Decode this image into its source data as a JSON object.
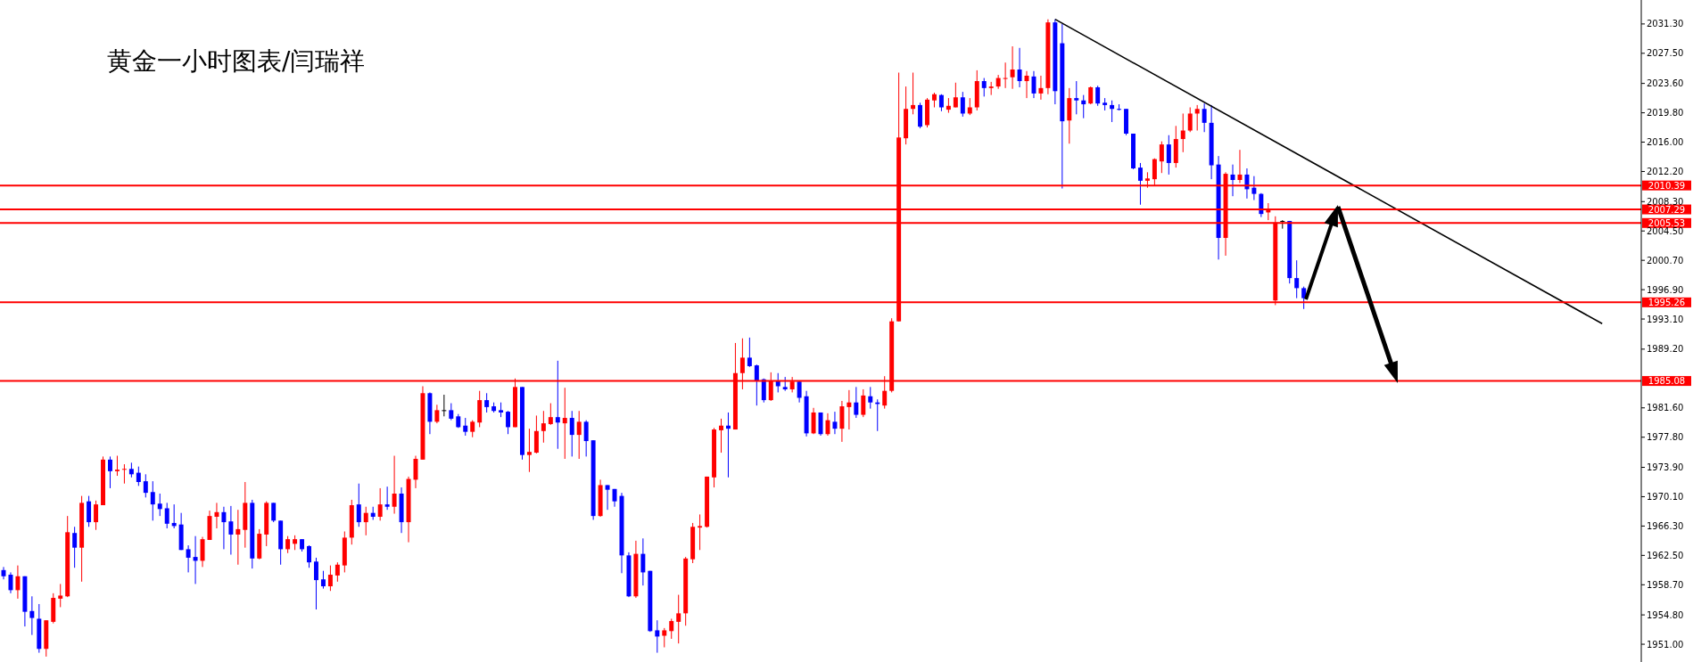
{
  "chart_data": {
    "type": "candlestick",
    "title": "黄金一小时图表/闫瑞祥",
    "categories": [
      null,
      null,
      null,
      null,
      null,
      null,
      null,
      null,
      null,
      null,
      null,
      null,
      null,
      null,
      null,
      null,
      null,
      null,
      null,
      null,
      null,
      null,
      null,
      null,
      null,
      null,
      null,
      null,
      null,
      null,
      null,
      null,
      null,
      null,
      null,
      null,
      null,
      null,
      null,
      null,
      null,
      null,
      null,
      null,
      null,
      null,
      null,
      null,
      null,
      null,
      null,
      null,
      null,
      null,
      null,
      null,
      null,
      null,
      null,
      null,
      null,
      null,
      null,
      null,
      null,
      null,
      null,
      null,
      null,
      null,
      null,
      null,
      null,
      null,
      null,
      null,
      null,
      null,
      null,
      null,
      null,
      null,
      null,
      null,
      null,
      null,
      null,
      null,
      null,
      null,
      null,
      null,
      null,
      null,
      null,
      null,
      null,
      null,
      null,
      null,
      null,
      null,
      null,
      null,
      null,
      null,
      null,
      null,
      null,
      null,
      null,
      null,
      null,
      null,
      null,
      null,
      null,
      null,
      null,
      null,
      null,
      null,
      null,
      null,
      null,
      null,
      null,
      null,
      null,
      null,
      null,
      null,
      null,
      null,
      null,
      null,
      null,
      null,
      null,
      null,
      null,
      null,
      null,
      null,
      null,
      null,
      null,
      null,
      null,
      null,
      null,
      null,
      null,
      null,
      null,
      null,
      null,
      null,
      null,
      null,
      null,
      null,
      null,
      null,
      null,
      null,
      null,
      null,
      null,
      null,
      null,
      null,
      null,
      null,
      null,
      null,
      null,
      null,
      null,
      null,
      null,
      null,
      null,
      null,
      null,
      null,
      null,
      null,
      null,
      null,
      null,
      null,
      null,
      null,
      null,
      null,
      null,
      null,
      null,
      null,
      null,
      null,
      null,
      null,
      null,
      null,
      null,
      null,
      null,
      null,
      null,
      null,
      null,
      null,
      null,
      null,
      null,
      null,
      null,
      null,
      null,
      null,
      null,
      null,
      null,
      null,
      null,
      null,
      null,
      null,
      null
    ],
    "ohlc": [
      [
        1960.6,
        1961.0,
        1959.4,
        1959.8
      ],
      [
        1960.0,
        1960.3,
        1957.6,
        1958.0
      ],
      [
        1958.0,
        1961.2,
        1956.9,
        1959.8
      ],
      [
        1959.8,
        1959.8,
        1953.3,
        1955.2
      ],
      [
        1955.3,
        1957.2,
        1952.2,
        1954.4
      ],
      [
        1954.3,
        1956.2,
        1949.9,
        1950.4
      ],
      [
        1950.4,
        1954.1,
        1949.4,
        1954.1
      ],
      [
        1953.9,
        1957.6,
        1953.7,
        1957.0
      ],
      [
        1956.9,
        1958.8,
        1955.8,
        1957.3
      ],
      [
        1957.2,
        1967.6,
        1957.1,
        1965.5
      ],
      [
        1965.4,
        1966.2,
        1960.9,
        1963.5
      ],
      [
        1963.5,
        1970.2,
        1959.1,
        1969.3
      ],
      [
        1969.5,
        1970.2,
        1966.2,
        1966.8
      ],
      [
        1966.8,
        1969.6,
        1965.8,
        1969.1
      ],
      [
        1969.0,
        1975.3,
        1969.0,
        1974.9
      ],
      [
        1974.9,
        1975.3,
        1971.2,
        1973.4
      ],
      [
        1973.4,
        1975.4,
        1972.8,
        1973.6
      ],
      [
        1973.6,
        1974.3,
        1971.8,
        1973.7
      ],
      [
        1973.7,
        1974.5,
        1972.6,
        1973.0
      ],
      [
        1973.2,
        1974.0,
        1971.5,
        1972.0
      ],
      [
        1972.1,
        1973.0,
        1970.0,
        1970.6
      ],
      [
        1970.7,
        1972.1,
        1967.0,
        1969.1
      ],
      [
        1969.2,
        1970.5,
        1967.6,
        1968.5
      ],
      [
        1968.6,
        1969.3,
        1966.0,
        1966.6
      ],
      [
        1966.7,
        1969.1,
        1966.0,
        1966.3
      ],
      [
        1966.5,
        1968.0,
        1963.2,
        1963.2
      ],
      [
        1963.3,
        1963.8,
        1960.3,
        1962.2
      ],
      [
        1962.3,
        1965.0,
        1958.8,
        1961.8
      ],
      [
        1961.8,
        1964.9,
        1961.0,
        1964.6
      ],
      [
        1964.5,
        1968.3,
        1964.5,
        1967.6
      ],
      [
        1967.5,
        1969.3,
        1966.0,
        1968.1
      ],
      [
        1968.1,
        1968.8,
        1963.3,
        1966.8
      ],
      [
        1966.9,
        1968.9,
        1962.6,
        1965.2
      ],
      [
        1965.2,
        1968.4,
        1961.3,
        1965.9
      ],
      [
        1965.8,
        1972.0,
        1963.5,
        1969.3
      ],
      [
        1969.3,
        1969.7,
        1960.8,
        1962.1
      ],
      [
        1962.1,
        1965.9,
        1962.0,
        1965.3
      ],
      [
        1965.2,
        1969.5,
        1963.7,
        1969.3
      ],
      [
        1969.3,
        1969.3,
        1966.8,
        1967.0
      ],
      [
        1967.0,
        1967.0,
        1961.3,
        1963.3
      ],
      [
        1963.3,
        1965.0,
        1962.8,
        1964.6
      ],
      [
        1964.0,
        1965.1,
        1963.2,
        1964.6
      ],
      [
        1964.6,
        1964.6,
        1963.0,
        1963.3
      ],
      [
        1963.7,
        1963.8,
        1960.9,
        1961.6
      ],
      [
        1961.7,
        1962.2,
        1955.5,
        1959.3
      ],
      [
        1959.4,
        1960.5,
        1958.2,
        1958.5
      ],
      [
        1958.5,
        1961.2,
        1957.9,
        1960.0
      ],
      [
        1959.9,
        1961.6,
        1959.1,
        1961.3
      ],
      [
        1961.2,
        1965.6,
        1960.3,
        1964.8
      ],
      [
        1964.8,
        1969.7,
        1963.9,
        1969.0
      ],
      [
        1969.1,
        1971.8,
        1966.2,
        1966.8
      ],
      [
        1966.8,
        1968.8,
        1965.1,
        1968.0
      ],
      [
        1968.0,
        1968.8,
        1967.1,
        1967.5
      ],
      [
        1967.5,
        1971.2,
        1967.0,
        1969.1
      ],
      [
        1969.1,
        1971.4,
        1968.4,
        1968.8
      ],
      [
        1968.8,
        1975.4,
        1967.9,
        1970.5
      ],
      [
        1970.5,
        1971.3,
        1965.4,
        1966.8
      ],
      [
        1966.8,
        1972.7,
        1964.2,
        1972.4
      ],
      [
        1972.3,
        1975.4,
        1971.2,
        1975.0
      ],
      [
        1974.9,
        1984.4,
        1974.9,
        1983.5
      ],
      [
        1983.5,
        1983.6,
        1978.2,
        1979.8
      ],
      [
        1979.8,
        1982.0,
        1979.6,
        1981.3
      ],
      [
        1981.3,
        1983.3,
        1980.5,
        1981.3
      ],
      [
        1981.3,
        1982.2,
        1980.0,
        1980.2
      ],
      [
        1980.5,
        1980.8,
        1979.0,
        1979.1
      ],
      [
        1979.3,
        1980.3,
        1978.0,
        1978.5
      ],
      [
        1978.5,
        1980.0,
        1977.8,
        1979.8
      ],
      [
        1979.7,
        1983.8,
        1979.1,
        1982.6
      ],
      [
        1982.6,
        1983.5,
        1981.0,
        1981.7
      ],
      [
        1981.8,
        1982.3,
        1981.0,
        1981.2
      ],
      [
        1981.3,
        1982.3,
        1980.4,
        1981.0
      ],
      [
        1981.1,
        1981.2,
        1978.2,
        1979.1
      ],
      [
        1979.1,
        1985.4,
        1979.1,
        1984.3
      ],
      [
        1984.3,
        1984.3,
        1974.9,
        1975.5
      ],
      [
        1975.5,
        1978.9,
        1973.3,
        1975.9
      ],
      [
        1975.8,
        1980.6,
        1975.7,
        1978.6
      ],
      [
        1978.6,
        1981.2,
        1977.1,
        1979.6
      ],
      [
        1979.5,
        1982.2,
        1979.4,
        1980.4
      ],
      [
        1980.4,
        1987.7,
        1976.3,
        1979.7
      ],
      [
        1979.6,
        1984.2,
        1975.0,
        1980.3
      ],
      [
        1980.3,
        1981.2,
        1975.3,
        1978.1
      ],
      [
        1978.1,
        1981.2,
        1975.0,
        1979.8
      ],
      [
        1979.8,
        1980.0,
        1975.3,
        1977.3
      ],
      [
        1977.4,
        1977.4,
        1967.1,
        1967.6
      ],
      [
        1967.6,
        1972.3,
        1967.5,
        1971.6
      ],
      [
        1971.6,
        1971.6,
        1968.4,
        1971.0
      ],
      [
        1971.1,
        1971.1,
        1968.8,
        1969.5
      ],
      [
        1970.2,
        1970.6,
        1960.2,
        1962.5
      ],
      [
        1962.5,
        1962.9,
        1957.1,
        1957.2
      ],
      [
        1957.2,
        1964.4,
        1957.0,
        1962.7
      ],
      [
        1962.7,
        1964.7,
        1958.6,
        1960.3
      ],
      [
        1960.5,
        1960.5,
        1952.6,
        1952.7
      ],
      [
        1952.8,
        1954.1,
        1949.9,
        1952.0
      ],
      [
        1952.1,
        1953.1,
        1950.6,
        1952.8
      ],
      [
        1952.7,
        1954.3,
        1951.7,
        1954.0
      ],
      [
        1953.9,
        1957.4,
        1951.1,
        1955.0
      ],
      [
        1955.0,
        1962.3,
        1953.4,
        1962.1
      ],
      [
        1962.0,
        1966.7,
        1961.5,
        1966.2
      ],
      [
        1966.1,
        1967.8,
        1963.2,
        1966.3
      ],
      [
        1966.2,
        1972.7,
        1966.1,
        1972.7
      ],
      [
        1972.6,
        1979.0,
        1971.3,
        1978.8
      ],
      [
        1978.7,
        1980.2,
        1975.8,
        1979.3
      ],
      [
        1979.3,
        1981.0,
        1972.6,
        1978.9
      ],
      [
        1978.8,
        1990.0,
        1978.8,
        1986.1
      ],
      [
        1986.1,
        1990.6,
        1984.0,
        1988.1
      ],
      [
        1988.1,
        1990.7,
        1986.9,
        1987.0
      ],
      [
        1987.1,
        1987.2,
        1981.9,
        1985.1
      ],
      [
        1985.3,
        1985.4,
        1982.3,
        1982.6
      ],
      [
        1982.6,
        1986.2,
        1982.5,
        1985.1
      ],
      [
        1985.1,
        1986.1,
        1983.6,
        1984.4
      ],
      [
        1984.3,
        1985.6,
        1983.8,
        1984.0
      ],
      [
        1984.0,
        1985.6,
        1983.6,
        1985.0
      ],
      [
        1985.0,
        1985.1,
        1982.3,
        1982.9
      ],
      [
        1983.1,
        1983.8,
        1977.9,
        1978.3
      ],
      [
        1978.3,
        1981.6,
        1978.2,
        1981.0
      ],
      [
        1981.0,
        1981.0,
        1978.0,
        1978.2
      ],
      [
        1978.2,
        1980.9,
        1978.0,
        1980.0
      ],
      [
        1979.8,
        1981.1,
        1978.2,
        1978.9
      ],
      [
        1978.9,
        1982.5,
        1977.2,
        1981.8
      ],
      [
        1981.7,
        1983.9,
        1978.8,
        1982.3
      ],
      [
        1982.3,
        1984.3,
        1980.3,
        1980.7
      ],
      [
        1980.7,
        1984.0,
        1980.4,
        1983.2
      ],
      [
        1983.1,
        1984.3,
        1981.5,
        1982.3
      ],
      [
        1982.3,
        1982.7,
        1978.6,
        1982.1
      ],
      [
        1981.9,
        1985.7,
        1981.5,
        1983.8
      ],
      [
        1983.8,
        1993.2,
        1983.6,
        1992.8
      ],
      [
        1992.8,
        2025.0,
        1992.8,
        2016.6
      ],
      [
        2016.5,
        2023.2,
        2015.7,
        2020.3
      ],
      [
        2020.3,
        2025.0,
        2019.6,
        2020.8
      ],
      [
        2020.8,
        2021.1,
        2017.8,
        2018.0
      ],
      [
        2018.2,
        2021.7,
        2017.9,
        2021.5
      ],
      [
        2021.4,
        2022.4,
        2020.5,
        2022.2
      ],
      [
        2022.1,
        2022.2,
        2020.0,
        2020.5
      ],
      [
        2020.2,
        2021.7,
        2019.8,
        2020.7
      ],
      [
        2020.5,
        2023.7,
        2020.5,
        2021.8
      ],
      [
        2021.8,
        2022.5,
        2019.3,
        2019.7
      ],
      [
        2019.7,
        2021.7,
        2019.5,
        2020.5
      ],
      [
        2020.5,
        2025.3,
        2020.1,
        2023.9
      ],
      [
        2023.9,
        2024.3,
        2021.9,
        2023.0
      ],
      [
        2023.0,
        2023.8,
        2022.1,
        2023.2
      ],
      [
        2023.2,
        2024.7,
        2022.9,
        2024.3
      ],
      [
        2024.2,
        2026.3,
        2023.0,
        2024.3
      ],
      [
        2024.4,
        2028.4,
        2022.9,
        2025.4
      ],
      [
        2025.4,
        2028.2,
        2023.1,
        2023.9
      ],
      [
        2023.9,
        2025.2,
        2021.7,
        2024.6
      ],
      [
        2024.5,
        2025.2,
        2021.7,
        2022.3
      ],
      [
        2022.3,
        2024.6,
        2021.5,
        2023.0
      ],
      [
        2023.0,
        2031.9,
        2022.2,
        2031.5
      ],
      [
        2031.5,
        2031.9,
        2020.9,
        2022.6
      ],
      [
        2028.8,
        2031.3,
        2010.0,
        2018.7
      ],
      [
        2018.8,
        2023.0,
        2015.8,
        2021.7
      ],
      [
        2021.7,
        2023.9,
        2019.6,
        2021.4
      ],
      [
        2021.4,
        2022.1,
        2019.1,
        2020.9
      ],
      [
        2021.0,
        2023.2,
        2020.9,
        2023.1
      ],
      [
        2023.1,
        2023.3,
        2020.7,
        2021.0
      ],
      [
        2021.1,
        2021.7,
        2020.1,
        2020.8
      ],
      [
        2020.8,
        2021.4,
        2018.6,
        2020.3
      ],
      [
        2020.3,
        2020.9,
        2020.1,
        2020.2
      ],
      [
        2020.3,
        2020.3,
        2016.9,
        2017.1
      ],
      [
        2017.1,
        2017.1,
        2012.5,
        2012.6
      ],
      [
        2012.7,
        2013.3,
        2007.9,
        2011.0
      ],
      [
        2011.0,
        2012.1,
        2010.1,
        2011.3
      ],
      [
        2011.2,
        2013.9,
        2010.4,
        2013.8
      ],
      [
        2013.5,
        2016.1,
        2012.0,
        2015.7
      ],
      [
        2015.7,
        2016.9,
        2011.8,
        2013.3
      ],
      [
        2013.3,
        2018.1,
        2012.7,
        2016.4
      ],
      [
        2016.4,
        2019.7,
        2014.7,
        2017.5
      ],
      [
        2017.5,
        2020.5,
        2017.3,
        2019.7
      ],
      [
        2019.7,
        2020.8,
        2017.5,
        2020.3
      ],
      [
        2020.3,
        2021.0,
        2017.3,
        2018.5
      ],
      [
        2018.5,
        2020.8,
        2011.2,
        2013.0
      ],
      [
        2013.1,
        2014.2,
        2000.8,
        2003.6
      ],
      [
        2003.6,
        2012.1,
        2001.3,
        2011.9
      ],
      [
        2011.8,
        2013.1,
        2009.0,
        2011.1
      ],
      [
        2011.1,
        2015.0,
        2010.7,
        2011.8
      ],
      [
        2011.8,
        2012.6,
        2008.7,
        2009.9
      ],
      [
        2010.1,
        2011.6,
        2008.5,
        2009.3
      ],
      [
        2009.3,
        2009.4,
        2006.3,
        2006.7
      ],
      [
        2006.9,
        2008.1,
        2005.9,
        2007.3
      ],
      [
        1995.5,
        2006.4,
        1994.9,
        2005.6
      ],
      [
        2005.8,
        2005.9,
        2004.8,
        2005.8
      ],
      [
        2005.8,
        2005.8,
        1997.7,
        1998.4
      ],
      [
        1998.4,
        2000.7,
        1995.8,
        1997.1
      ],
      [
        1997.1,
        1997.3,
        1994.4,
        1995.8
      ],
      null,
      null,
      null,
      null,
      null,
      null,
      null,
      null,
      null,
      null,
      null,
      null,
      null,
      null,
      null,
      null,
      null,
      null,
      null,
      null,
      null,
      null,
      null,
      null,
      null,
      null,
      null,
      null,
      null,
      null,
      null,
      null,
      null,
      null,
      null,
      null,
      null,
      null,
      null,
      null,
      null,
      null,
      null,
      null,
      null,
      null,
      null
    ],
    "colors": [
      "#0000ff",
      "#0000ff",
      "#ff0000",
      "#0000ff",
      "#0000ff",
      "#0000ff",
      "#ff0000",
      "#ff0000",
      "#ff0000",
      "#ff0000",
      "#0000ff",
      "#ff0000",
      "#0000ff",
      "#ff0000",
      "#ff0000",
      "#0000ff",
      "#ff0000",
      "#ff0000",
      "#0000ff",
      "#0000ff",
      "#0000ff",
      "#0000ff",
      "#0000ff",
      "#0000ff",
      "#0000ff",
      "#0000ff",
      "#0000ff",
      "#0000ff",
      "#ff0000",
      "#ff0000",
      "#ff0000",
      "#0000ff",
      "#0000ff",
      "#ff0000",
      "#ff0000",
      "#0000ff",
      "#ff0000",
      "#ff0000",
      "#0000ff",
      "#0000ff",
      "#ff0000",
      "#ff0000",
      "#0000ff",
      "#0000ff",
      "#0000ff",
      "#0000ff",
      "#ff0000",
      "#ff0000",
      "#ff0000",
      "#ff0000",
      "#0000ff",
      "#ff0000",
      "#0000ff",
      "#ff0000",
      "#0000ff",
      "#ff0000",
      "#0000ff",
      "#ff0000",
      "#ff0000",
      "#ff0000",
      "#0000ff",
      "#ff0000",
      "#000000",
      "#0000ff",
      "#0000ff",
      "#0000ff",
      "#ff0000",
      "#ff0000",
      "#0000ff",
      "#0000ff",
      "#0000ff",
      "#0000ff",
      "#ff0000",
      "#0000ff",
      "#ff0000",
      "#ff0000",
      "#ff0000",
      "#ff0000",
      "#0000ff",
      "#ff0000",
      "#0000ff",
      "#ff0000",
      "#0000ff",
      "#0000ff",
      "#ff0000",
      "#0000ff",
      "#0000ff",
      "#0000ff",
      "#0000ff",
      "#ff0000",
      "#0000ff",
      "#0000ff",
      "#0000ff",
      "#ff0000",
      "#ff0000",
      "#ff0000",
      "#ff0000",
      "#ff0000",
      "#ff0000",
      "#ff0000",
      "#ff0000",
      "#ff0000",
      "#0000ff",
      "#ff0000",
      "#ff0000",
      "#0000ff",
      "#0000ff",
      "#0000ff",
      "#ff0000",
      "#0000ff",
      "#0000ff",
      "#ff0000",
      "#0000ff",
      "#0000ff",
      "#ff0000",
      "#0000ff",
      "#ff0000",
      "#0000ff",
      "#ff0000",
      "#ff0000",
      "#0000ff",
      "#ff0000",
      "#0000ff",
      "#0000ff",
      "#ff0000",
      "#ff0000",
      "#ff0000",
      "#ff0000",
      "#ff0000",
      "#0000ff",
      "#ff0000",
      "#ff0000",
      "#0000ff",
      "#ff0000",
      "#ff0000",
      "#0000ff",
      "#ff0000",
      "#ff0000",
      "#0000ff",
      "#ff0000",
      "#ff0000",
      "#ff0000",
      "#ff0000",
      "#0000ff",
      "#ff0000",
      "#0000ff",
      "#ff0000",
      "#ff0000",
      "#0000ff",
      "#0000ff",
      "#ff0000",
      "#0000ff",
      "#0000ff",
      "#ff0000",
      "#0000ff",
      "#0000ff",
      "#0000ff",
      "#0000ff",
      "#0000ff",
      "#0000ff",
      "#0000ff",
      "#ff0000",
      "#ff0000",
      "#ff0000",
      "#0000ff",
      "#ff0000",
      "#ff0000",
      "#ff0000",
      "#ff0000",
      "#0000ff",
      "#0000ff",
      "#0000ff",
      "#ff0000",
      "#0000ff",
      "#ff0000",
      "#0000ff",
      "#0000ff",
      "#0000ff",
      "#ff0000",
      "#ff0000",
      "#000000",
      "#0000ff",
      "#0000ff",
      "#0000ff",
      null,
      null,
      null,
      null,
      null,
      null,
      null,
      null,
      null,
      null,
      null,
      null,
      null,
      null,
      null,
      null,
      null,
      null,
      null,
      null,
      null,
      null,
      null,
      null,
      null,
      null,
      null,
      null,
      null,
      null,
      null,
      null,
      null,
      null,
      null,
      null,
      null,
      null,
      null,
      null,
      null,
      null,
      null,
      null,
      null,
      null,
      null
    ],
    "series": [
      {
        "type": "line",
        "color": "#000000",
        "values": [
          null,
          null,
          null,
          null,
          null,
          null,
          null,
          null,
          null,
          null,
          null,
          null,
          null,
          null,
          null,
          null,
          null,
          null,
          null,
          null,
          null,
          null,
          null,
          null,
          null,
          null,
          null,
          null,
          null,
          null,
          null,
          null,
          null,
          null,
          null,
          null,
          null,
          null,
          null,
          null,
          null,
          null,
          null,
          null,
          null,
          null,
          null,
          null,
          null,
          null,
          null,
          null,
          null,
          null,
          null,
          null,
          null,
          null,
          null,
          null,
          null,
          null,
          null,
          null,
          null,
          null,
          null,
          null,
          null,
          null,
          null,
          null,
          null,
          null,
          null,
          null,
          null,
          null,
          null,
          null,
          null,
          null,
          null,
          null,
          null,
          null,
          null,
          null,
          null,
          null,
          null,
          null,
          null,
          null,
          null,
          null,
          null,
          null,
          null,
          null,
          null,
          null,
          null,
          null,
          null,
          null,
          null,
          null,
          null,
          null,
          null,
          null,
          null,
          null,
          null,
          null,
          null,
          null,
          null,
          null,
          null,
          null,
          null,
          null,
          null,
          null,
          null,
          null,
          null,
          null,
          null,
          null,
          null,
          null,
          null,
          null,
          null,
          null,
          null,
          null,
          null,
          null,
          null,
          null,
          null,
          null,
          null,
          null,
          2031.9,
          null,
          null,
          null,
          null,
          null,
          null,
          null,
          null,
          null,
          null,
          null,
          null,
          null,
          null,
          null,
          null,
          null,
          null,
          null,
          null,
          null,
          null,
          null,
          null,
          null,
          null,
          null,
          null,
          null,
          null,
          null,
          null,
          null,
          null,
          null,
          null,
          null,
          null,
          null,
          null,
          null,
          null,
          null,
          null,
          null,
          null,
          null,
          null,
          null,
          null,
          null,
          null,
          null,
          null,
          null,
          null,
          null,
          null,
          null,
          null,
          null,
          null,
          null,
          null,
          null,
          null,
          null,
          null,
          null,
          null,
          null,
          null,
          null,
          null,
          null,
          null,
          1992.5,
          null,
          null,
          null,
          null,
          null
        ]
      }
    ],
    "ylim": [
      1948.7,
      2034.4
    ],
    "yticks": [
      {
        "value": 2031.3,
        "label": "2031.30"
      },
      {
        "value": 2027.5,
        "label": "2027.50"
      },
      {
        "value": 2023.6,
        "label": "2023.60"
      },
      {
        "value": 2019.8,
        "label": "2019.80"
      },
      {
        "value": 2016.0,
        "label": "2016.00"
      },
      {
        "value": 2012.2,
        "label": "2012.20"
      },
      {
        "value": 2008.3,
        "label": "2008.30"
      },
      {
        "value": 2004.5,
        "label": "2004.50"
      },
      {
        "value": 2000.7,
        "label": "2000.70"
      },
      {
        "value": 1996.9,
        "label": "1996.90"
      },
      {
        "value": 1993.1,
        "label": "1993.10"
      },
      {
        "value": 1989.2,
        "label": "1989.20"
      },
      {
        "value": 1981.6,
        "label": "1981.60"
      },
      {
        "value": 1977.8,
        "label": "1977.80"
      },
      {
        "value": 1973.9,
        "label": "1973.90"
      },
      {
        "value": 1970.1,
        "label": "1970.10"
      },
      {
        "value": 1966.3,
        "label": "1966.30"
      },
      {
        "value": 1962.5,
        "label": "1962.50"
      },
      {
        "value": 1958.7,
        "label": "1958.70"
      },
      {
        "value": 1954.8,
        "label": "1954.80"
      },
      {
        "value": 1951.0,
        "label": "1951.00"
      }
    ],
    "ref_lines": [
      {
        "axis": "y",
        "value": 2010.39,
        "label": "2010.39",
        "color": "#ff0000"
      },
      {
        "axis": "y",
        "value": 2007.29,
        "label": "2007.29",
        "color": "#ff0000"
      },
      {
        "axis": "y",
        "value": 2005.53,
        "label": "2005.53",
        "color": "#ff0000"
      },
      {
        "axis": "y",
        "value": 1995.26,
        "label": "1995.26",
        "color": "#ff0000"
      },
      {
        "axis": "y",
        "value": 1985.08,
        "label": "1985.08",
        "color": "#ff0000"
      }
    ],
    "tick_labels": "y"
  }
}
